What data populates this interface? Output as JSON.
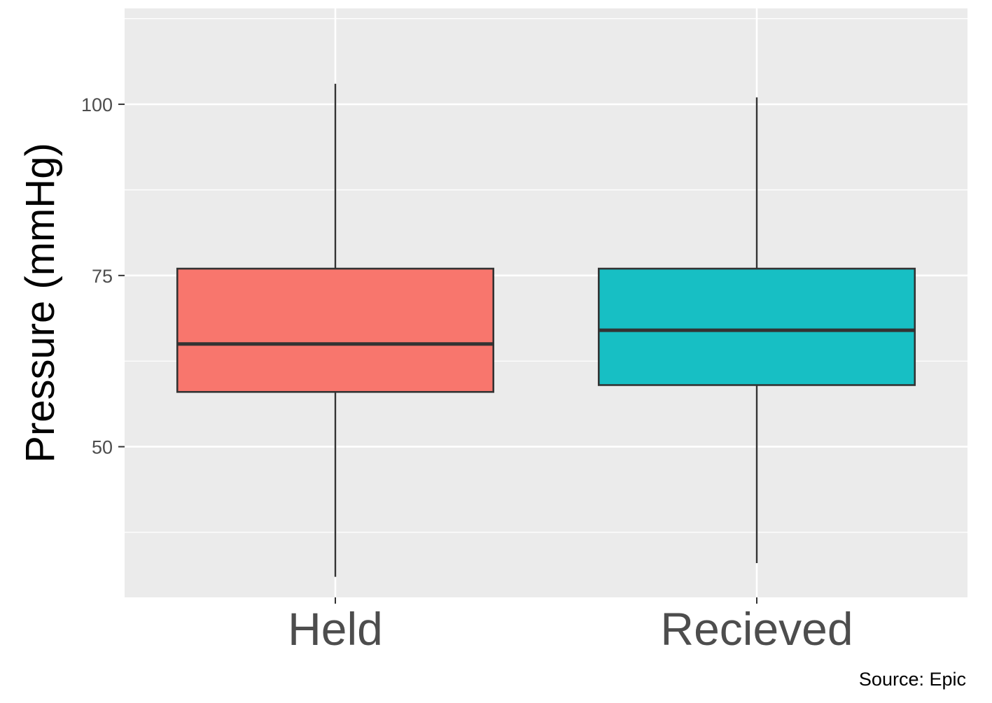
{
  "chart_data": {
    "type": "box",
    "xlabel": "",
    "ylabel": "Pressure (mmHg)",
    "caption": "Source: Epic",
    "ylim": [
      28,
      114
    ],
    "yticks": [
      50,
      75,
      100
    ],
    "yticks_minor": [
      37.5,
      62.5,
      87.5,
      112.5
    ],
    "grid": true,
    "panel_color": "#ebebeb",
    "categories": [
      "Held",
      "Recieved"
    ],
    "boxes": [
      {
        "category": "Held",
        "min": 31,
        "q1": 58,
        "median": 65,
        "q3": 76,
        "max": 103,
        "color": "#F8766D"
      },
      {
        "category": "Recieved",
        "min": 33,
        "q1": 59,
        "median": 67,
        "q3": 76,
        "max": 101,
        "color": "#17BFC4"
      }
    ]
  }
}
